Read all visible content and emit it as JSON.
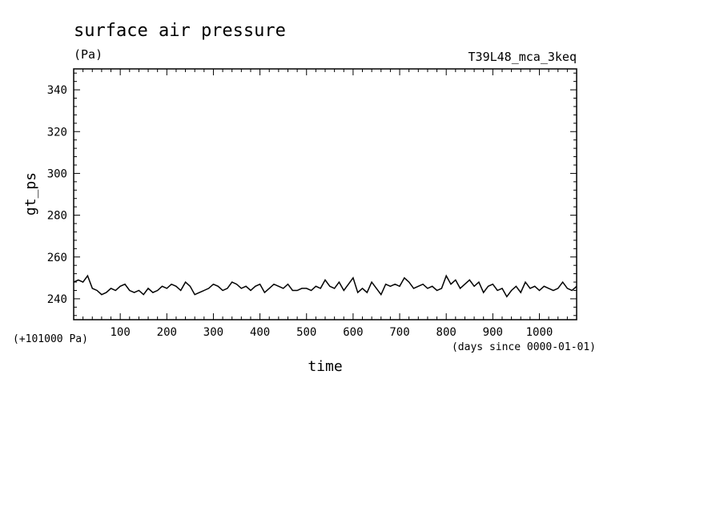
{
  "chart_data": {
    "type": "line",
    "title": "surface air pressure",
    "units": "(Pa)",
    "experiment": "T39L48_mca_3keq",
    "xlabel": "time",
    "x_units": "(days since 0000-01-01)",
    "ylabel": "gt_ps",
    "y_offset_note": "(+101000 Pa)",
    "xlim": [
      0,
      1080
    ],
    "ylim": [
      230,
      350
    ],
    "x_ticks": [
      100,
      200,
      300,
      400,
      500,
      600,
      700,
      800,
      900,
      1000
    ],
    "y_ticks": [
      240,
      260,
      280,
      300,
      320,
      340
    ],
    "x_tick_labels": [
      "100",
      "200",
      "300",
      "400",
      "500",
      "600",
      "700",
      "800",
      "900",
      "1000"
    ],
    "y_tick_labels": [
      "240",
      "260",
      "280",
      "300",
      "320",
      "340"
    ],
    "series": [
      {
        "x": [
          0,
          10,
          20,
          30,
          40,
          50,
          60,
          70,
          80,
          90,
          100,
          110,
          120,
          130,
          140,
          150,
          160,
          170,
          180,
          190,
          200,
          210,
          220,
          230,
          240,
          250,
          260,
          270,
          280,
          290,
          300,
          310,
          320,
          330,
          340,
          350,
          360,
          370,
          380,
          390,
          400,
          410,
          420,
          430,
          440,
          450,
          460,
          470,
          480,
          490,
          500,
          510,
          520,
          530,
          540,
          550,
          560,
          570,
          580,
          590,
          600,
          610,
          620,
          630,
          640,
          650,
          660,
          670,
          680,
          690,
          700,
          710,
          720,
          730,
          740,
          750,
          760,
          770,
          780,
          790,
          800,
          810,
          820,
          830,
          840,
          850,
          860,
          870,
          880,
          890,
          900,
          910,
          920,
          930,
          940,
          950,
          960,
          970,
          980,
          990,
          1000,
          1010,
          1020,
          1030,
          1040,
          1050,
          1060,
          1070,
          1080
        ],
        "values": [
          248,
          249,
          248,
          251,
          245,
          244,
          242,
          243,
          245,
          244,
          246,
          247,
          244,
          243,
          244,
          242,
          245,
          243,
          244,
          246,
          245,
          247,
          246,
          244,
          248,
          246,
          242,
          243,
          244,
          245,
          247,
          246,
          244,
          245,
          248,
          247,
          245,
          246,
          244,
          246,
          247,
          243,
          245,
          247,
          246,
          245,
          247,
          244,
          244,
          245,
          245,
          244,
          246,
          245,
          249,
          246,
          245,
          248,
          244,
          247,
          250,
          243,
          245,
          243,
          248,
          245,
          242,
          247,
          246,
          247,
          246,
          250,
          248,
          245,
          246,
          247,
          245,
          246,
          244,
          245,
          251,
          247,
          249,
          245,
          247,
          249,
          246,
          248,
          243,
          246,
          247,
          244,
          245,
          241,
          244,
          246,
          243,
          248,
          245,
          246,
          244,
          246,
          245,
          244,
          245,
          248,
          245,
          244,
          246
        ]
      }
    ]
  }
}
